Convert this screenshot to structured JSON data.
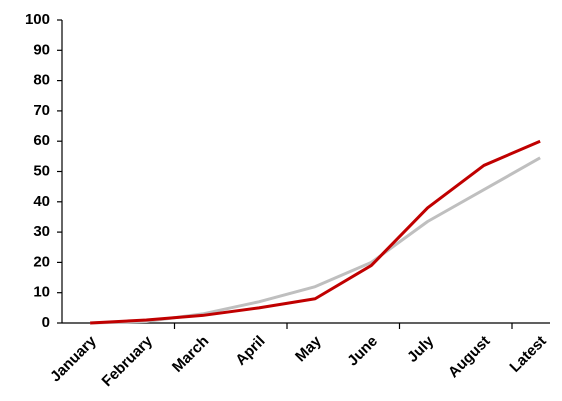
{
  "chart_data": {
    "type": "line",
    "categories": [
      "January",
      "February",
      "March",
      "April",
      "May",
      "June",
      "July",
      "August",
      "Latest"
    ],
    "series": [
      {
        "color": "#bfbfbf",
        "values": [
          0,
          0.5,
          3,
          7,
          12,
          20,
          33.5,
          44,
          54.5
        ]
      },
      {
        "color": "#c00000",
        "values": [
          0,
          1,
          2.5,
          5,
          8,
          19,
          38,
          52,
          60
        ]
      }
    ],
    "ylim": [
      0,
      100
    ],
    "yticks": [
      0,
      10,
      20,
      30,
      40,
      50,
      60,
      70,
      80,
      90,
      100
    ]
  }
}
